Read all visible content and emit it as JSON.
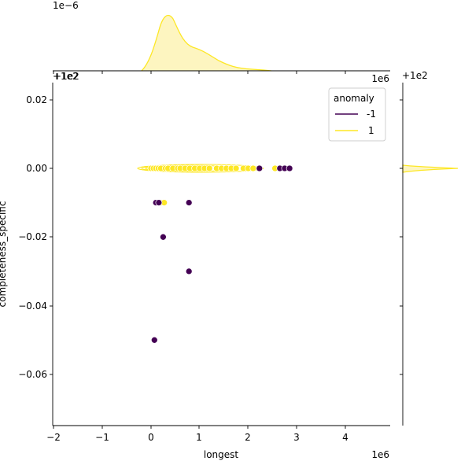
{
  "figure": {
    "top_marginal": {
      "offset_label": "1e−6",
      "corner_offset": "+1e2",
      "x_offset_label": "1e6"
    },
    "right_marginal": {
      "offset_label": "+1e2"
    },
    "main": {
      "x_offset_label": "1e6",
      "y_offset_label": "+1e2"
    }
  },
  "colors": {
    "anomaly_neg": "#440154",
    "anomaly_pos": "#fde725",
    "kde_fill": "#fdf5c0",
    "axis": "#000000"
  },
  "chart_data": {
    "type": "scatter",
    "title": "",
    "xlabel": "longest",
    "ylabel": "completeness_specific",
    "x_scale_note": "x values in units of 1e6",
    "y_offset_note": "y values are offsets from 1e2 (100)",
    "xlim": [
      -2.05,
      4.9
    ],
    "ylim": [
      -0.075,
      0.025
    ],
    "x_ticks": [
      -2,
      -1,
      0,
      1,
      2,
      3,
      4
    ],
    "x_tick_labels": [
      "−2",
      "−1",
      "0",
      "1",
      "2",
      "3",
      "4"
    ],
    "y_ticks": [
      0.02,
      0.0,
      -0.02,
      -0.04,
      -0.06
    ],
    "y_tick_labels": [
      "0.02",
      "0.00",
      "−0.02",
      "−0.04",
      "−0.06"
    ],
    "legend": {
      "title": "anomaly",
      "position": "upper right",
      "entries": [
        "-1",
        "1"
      ]
    },
    "grid": false,
    "series": [
      {
        "name": "1",
        "color": "#fde725",
        "points": [
          [
            0.0,
            0.0
          ],
          [
            0.05,
            0.0
          ],
          [
            0.1,
            0.0
          ],
          [
            0.15,
            0.0
          ],
          [
            0.2,
            0.0
          ],
          [
            0.3,
            0.0
          ],
          [
            0.35,
            0.0
          ],
          [
            0.45,
            0.0
          ],
          [
            0.55,
            0.0
          ],
          [
            0.6,
            0.0
          ],
          [
            0.7,
            0.0
          ],
          [
            0.8,
            0.0
          ],
          [
            0.9,
            0.0
          ],
          [
            1.0,
            0.0
          ],
          [
            1.1,
            0.0
          ],
          [
            1.2,
            0.0
          ],
          [
            1.35,
            0.0
          ],
          [
            1.45,
            0.0
          ],
          [
            1.55,
            0.0
          ],
          [
            1.65,
            0.0
          ],
          [
            1.75,
            0.0
          ],
          [
            1.9,
            0.0
          ],
          [
            2.0,
            0.0
          ],
          [
            2.1,
            0.0
          ],
          [
            2.55,
            0.0
          ],
          [
            0.2,
            -0.01
          ],
          [
            0.27,
            -0.01
          ]
        ]
      },
      {
        "name": "-1",
        "color": "#440154",
        "points": [
          [
            2.23,
            0.0
          ],
          [
            2.65,
            0.0
          ],
          [
            2.75,
            0.0
          ],
          [
            2.85,
            0.0
          ],
          [
            0.1,
            -0.01
          ],
          [
            0.16,
            -0.01
          ],
          [
            0.78,
            -0.01
          ],
          [
            0.25,
            -0.02
          ],
          [
            0.78,
            -0.03
          ],
          [
            0.07,
            -0.05
          ]
        ]
      }
    ],
    "marginal_x_kde": {
      "y_scale_label": "1e−6",
      "peak_x": 0.35,
      "shoulder_x": 0.9,
      "x_range": [
        -0.15,
        2.8
      ],
      "series": "1"
    },
    "marginal_y_kde": {
      "peak_y": 0.0,
      "series": "1"
    }
  }
}
